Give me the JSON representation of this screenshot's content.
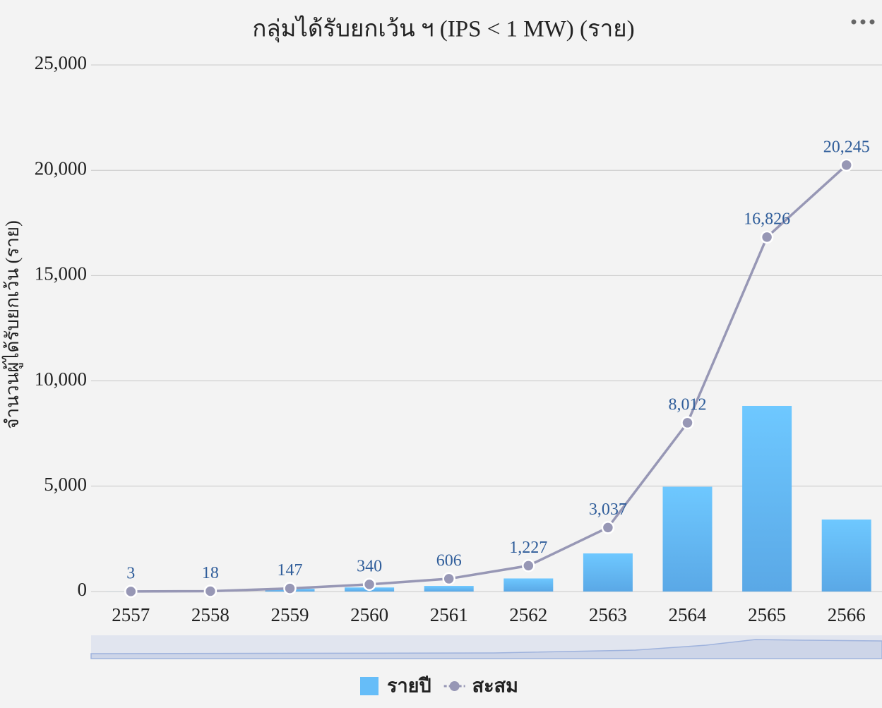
{
  "chart_data": {
    "type": "bar",
    "title": "กลุ่มได้รับยกเว้น ฯ (IPS < 1 MW) (ราย)",
    "y_label": "จำนวนผู้ได้รับยกเว้น (ราย)",
    "categories": [
      "2557",
      "2558",
      "2559",
      "2560",
      "2561",
      "2562",
      "2563",
      "2564",
      "2565",
      "2566"
    ],
    "series": [
      {
        "name": "รายปี",
        "type": "bar",
        "color": "#66bdf8",
        "values": [
          3,
          15,
          129,
          193,
          266,
          621,
          1810,
          4975,
          8814,
          3419
        ]
      },
      {
        "name": "สะสม",
        "type": "line",
        "color": "#9797b5",
        "values": [
          3,
          18,
          147,
          340,
          606,
          1227,
          3037,
          8012,
          16826,
          20245
        ],
        "value_labels": [
          "3",
          "18",
          "147",
          "340",
          "606",
          "1,227",
          "3,037",
          "8,012",
          "16,826",
          "20,245"
        ]
      }
    ],
    "ylim": [
      0,
      25000
    ],
    "yticks": [
      0,
      {
        "value": 5000,
        "label": "5,000"
      },
      {
        "value": 10000,
        "label": "10,000"
      },
      {
        "value": 15000,
        "label": "15,000"
      },
      {
        "value": 20000,
        "label": "20,000"
      },
      {
        "value": 25000,
        "label": "25,000"
      }
    ],
    "grid": true,
    "legend": "bottom"
  }
}
